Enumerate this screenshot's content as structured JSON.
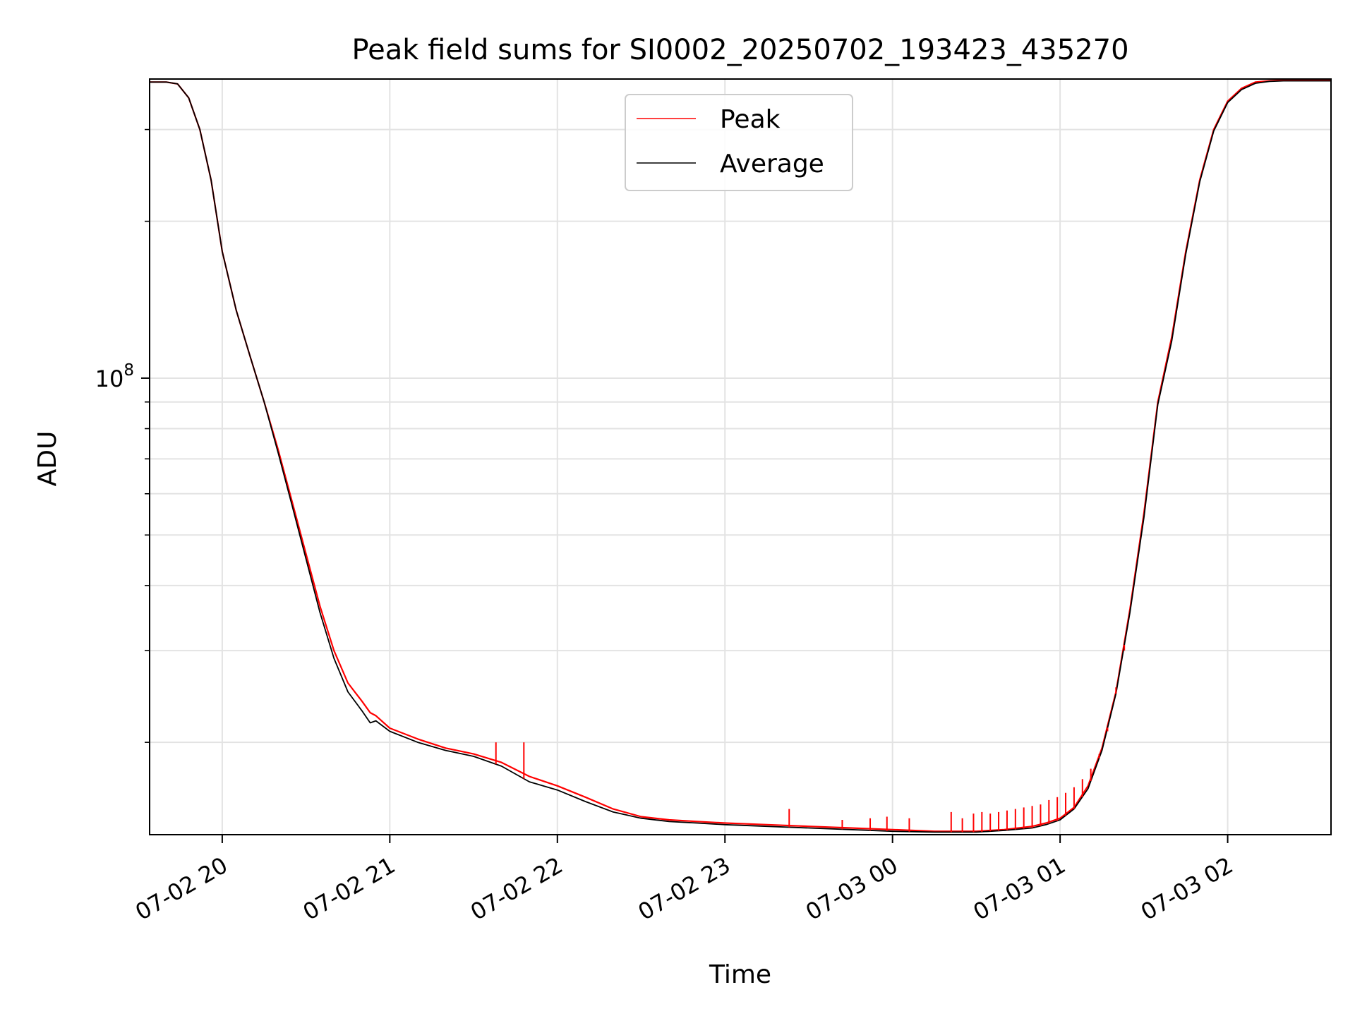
{
  "chart_data": {
    "type": "line",
    "title": "Peak field sums for SI0002_20250702_193423_435270",
    "xlabel": "Time",
    "ylabel": "ADU",
    "y_scale": "log",
    "ylim": [
      13300000,
      375000000
    ],
    "xlim": [
      "2025-07-02 19:34",
      "2025-07-03 02:37"
    ],
    "x_ticks": [
      {
        "value": "2025-07-02 20:00",
        "label": "07-02 20"
      },
      {
        "value": "2025-07-02 21:00",
        "label": "07-02 21"
      },
      {
        "value": "2025-07-02 22:00",
        "label": "07-02 22"
      },
      {
        "value": "2025-07-02 23:00",
        "label": "07-02 23"
      },
      {
        "value": "2025-07-03 00:00",
        "label": "07-03 00"
      },
      {
        "value": "2025-07-03 01:00",
        "label": "07-03 01"
      },
      {
        "value": "2025-07-03 02:00",
        "label": "07-03 02"
      }
    ],
    "y_major_ticks": [
      {
        "value": 100000000,
        "label_base": "10",
        "label_exp": "8"
      }
    ],
    "y_minor_ticks": [
      20000000,
      30000000,
      40000000,
      50000000,
      60000000,
      70000000,
      80000000,
      90000000,
      200000000,
      300000000
    ],
    "grid": true,
    "legend_position": "top-center",
    "series": [
      {
        "name": "Peak",
        "color": "#ff0000",
        "x": [
          "2025-07-02 19:34",
          "2025-07-02 19:40",
          "2025-07-02 19:44",
          "2025-07-02 19:48",
          "2025-07-02 19:52",
          "2025-07-02 19:56",
          "2025-07-02 20:00",
          "2025-07-02 20:05",
          "2025-07-02 20:10",
          "2025-07-02 20:15",
          "2025-07-02 20:20",
          "2025-07-02 20:25",
          "2025-07-02 20:30",
          "2025-07-02 20:35",
          "2025-07-02 20:40",
          "2025-07-02 20:45",
          "2025-07-02 20:50",
          "2025-07-02 20:53",
          "2025-07-02 20:55",
          "2025-07-02 21:00",
          "2025-07-02 21:10",
          "2025-07-02 21:20",
          "2025-07-02 21:30",
          "2025-07-02 21:40",
          "2025-07-02 21:50",
          "2025-07-02 22:00",
          "2025-07-02 22:10",
          "2025-07-02 22:20",
          "2025-07-02 22:30",
          "2025-07-02 22:40",
          "2025-07-02 22:50",
          "2025-07-02 23:00",
          "2025-07-02 23:15",
          "2025-07-02 23:30",
          "2025-07-02 23:45",
          "2025-07-03 00:00",
          "2025-07-03 00:15",
          "2025-07-03 00:30",
          "2025-07-03 00:40",
          "2025-07-03 00:50",
          "2025-07-03 00:55",
          "2025-07-03 01:00",
          "2025-07-03 01:05",
          "2025-07-03 01:10",
          "2025-07-03 01:15",
          "2025-07-03 01:20",
          "2025-07-03 01:25",
          "2025-07-03 01:30",
          "2025-07-03 01:35",
          "2025-07-03 01:40",
          "2025-07-03 01:45",
          "2025-07-03 01:50",
          "2025-07-03 01:55",
          "2025-07-03 02:00",
          "2025-07-03 02:05",
          "2025-07-03 02:10",
          "2025-07-03 02:15",
          "2025-07-03 02:20",
          "2025-07-03 02:25",
          "2025-07-03 02:30",
          "2025-07-03 02:37"
        ],
        "values": [
          370000000,
          370000000,
          367000000,
          345000000,
          300000000,
          240000000,
          175000000,
          135000000,
          110000000,
          90000000,
          73000000,
          58000000,
          46000000,
          36500000,
          30000000,
          26000000,
          24000000,
          22800000,
          22500000,
          21300000,
          20300000,
          19500000,
          19000000,
          18300000,
          17200000,
          16500000,
          15700000,
          14900000,
          14400000,
          14200000,
          14100000,
          14000000,
          13900000,
          13800000,
          13700000,
          13600000,
          13500000,
          13500000,
          13600000,
          13800000,
          14000000,
          14300000,
          15000000,
          16500000,
          19500000,
          25000000,
          36000000,
          55000000,
          90000000,
          120000000,
          175000000,
          240000000,
          300000000,
          340000000,
          360000000,
          370000000,
          372000000,
          373000000,
          373000000,
          373000000,
          373000000
        ]
      },
      {
        "name": "Average",
        "color": "#000000",
        "x": [
          "2025-07-02 19:34",
          "2025-07-02 19:40",
          "2025-07-02 19:44",
          "2025-07-02 19:48",
          "2025-07-02 19:52",
          "2025-07-02 19:56",
          "2025-07-02 20:00",
          "2025-07-02 20:05",
          "2025-07-02 20:10",
          "2025-07-02 20:15",
          "2025-07-02 20:20",
          "2025-07-02 20:25",
          "2025-07-02 20:30",
          "2025-07-02 20:35",
          "2025-07-02 20:40",
          "2025-07-02 20:45",
          "2025-07-02 20:50",
          "2025-07-02 20:53",
          "2025-07-02 20:55",
          "2025-07-02 21:00",
          "2025-07-02 21:10",
          "2025-07-02 21:20",
          "2025-07-02 21:30",
          "2025-07-02 21:40",
          "2025-07-02 21:50",
          "2025-07-02 22:00",
          "2025-07-02 22:10",
          "2025-07-02 22:20",
          "2025-07-02 22:30",
          "2025-07-02 22:40",
          "2025-07-02 22:50",
          "2025-07-02 23:00",
          "2025-07-02 23:15",
          "2025-07-02 23:30",
          "2025-07-02 23:45",
          "2025-07-03 00:00",
          "2025-07-03 00:15",
          "2025-07-03 00:30",
          "2025-07-03 00:40",
          "2025-07-03 00:50",
          "2025-07-03 00:55",
          "2025-07-03 01:00",
          "2025-07-03 01:05",
          "2025-07-03 01:10",
          "2025-07-03 01:15",
          "2025-07-03 01:20",
          "2025-07-03 01:25",
          "2025-07-03 01:30",
          "2025-07-03 01:35",
          "2025-07-03 01:40",
          "2025-07-03 01:45",
          "2025-07-03 01:50",
          "2025-07-03 01:55",
          "2025-07-03 02:00",
          "2025-07-03 02:05",
          "2025-07-03 02:10",
          "2025-07-03 02:15",
          "2025-07-03 02:20",
          "2025-07-03 02:25",
          "2025-07-03 02:30",
          "2025-07-03 02:37"
        ],
        "values": [
          370000000,
          370000000,
          367000000,
          345000000,
          300000000,
          240000000,
          175000000,
          135000000,
          110000000,
          90000000,
          72000000,
          57000000,
          45000000,
          35500000,
          29000000,
          25000000,
          23000000,
          21800000,
          22000000,
          21000000,
          20000000,
          19300000,
          18800000,
          18000000,
          16800000,
          16200000,
          15400000,
          14700000,
          14300000,
          14100000,
          14000000,
          13900000,
          13800000,
          13700000,
          13600000,
          13500000,
          13450000,
          13450000,
          13550000,
          13700000,
          13900000,
          14200000,
          14900000,
          16300000,
          19300000,
          24800000,
          35500000,
          54000000,
          89000000,
          118000000,
          173000000,
          238000000,
          298000000,
          338000000,
          358000000,
          368000000,
          371000000,
          372000000,
          372000000,
          372000000,
          372000000
        ]
      }
    ],
    "peak_spikes": [
      {
        "x": "2025-07-02 21:38",
        "value": 20000000
      },
      {
        "x": "2025-07-02 21:48",
        "value": 20000000
      },
      {
        "x": "2025-07-02 23:23",
        "value": 14900000
      },
      {
        "x": "2025-07-02 23:42",
        "value": 14200000
      },
      {
        "x": "2025-07-02 23:52",
        "value": 14300000
      },
      {
        "x": "2025-07-02 23:58",
        "value": 14400000
      },
      {
        "x": "2025-07-03 00:06",
        "value": 14300000
      },
      {
        "x": "2025-07-03 00:21",
        "value": 14700000
      },
      {
        "x": "2025-07-03 00:25",
        "value": 14300000
      },
      {
        "x": "2025-07-03 00:29",
        "value": 14600000
      },
      {
        "x": "2025-07-03 00:32",
        "value": 14700000
      },
      {
        "x": "2025-07-03 00:35",
        "value": 14600000
      },
      {
        "x": "2025-07-03 00:38",
        "value": 14700000
      },
      {
        "x": "2025-07-03 00:41",
        "value": 14800000
      },
      {
        "x": "2025-07-03 00:44",
        "value": 14900000
      },
      {
        "x": "2025-07-03 00:47",
        "value": 15000000
      },
      {
        "x": "2025-07-03 00:50",
        "value": 15100000
      },
      {
        "x": "2025-07-03 00:53",
        "value": 15200000
      },
      {
        "x": "2025-07-03 00:56",
        "value": 15500000
      },
      {
        "x": "2025-07-03 00:59",
        "value": 15700000
      },
      {
        "x": "2025-07-03 01:02",
        "value": 16000000
      },
      {
        "x": "2025-07-03 01:05",
        "value": 16400000
      },
      {
        "x": "2025-07-03 01:08",
        "value": 17000000
      },
      {
        "x": "2025-07-03 01:11",
        "value": 17800000
      },
      {
        "x": "2025-07-03 01:14",
        "value": 19000000
      },
      {
        "x": "2025-07-03 01:17",
        "value": 21000000
      },
      {
        "x": "2025-07-03 01:20",
        "value": 25500000
      },
      {
        "x": "2025-07-03 01:23",
        "value": 30000000
      }
    ]
  }
}
